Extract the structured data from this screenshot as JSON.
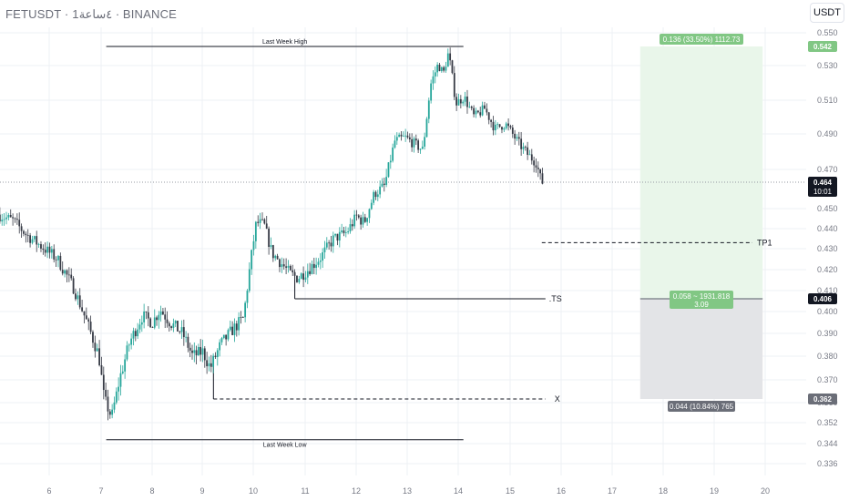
{
  "header": {
    "title": "FETUSDT · 1٤ساعة · BINANCE",
    "unit_button": "USDT"
  },
  "chart_data": {
    "type": "candlestick",
    "symbol": "FETUSDT",
    "exchange": "BINANCE",
    "ylim": [
      0.336,
      0.556
    ],
    "y_ticks": [
      "0.550",
      "0.530",
      "0.510",
      "0.490",
      "0.470",
      "0.450",
      "0.440",
      "0.430",
      "0.420",
      "0.410",
      "0.400",
      "0.390",
      "0.380",
      "0.370",
      "0.360",
      "0.352",
      "0.344",
      "0.336"
    ],
    "x_ticks": [
      {
        "label": "6",
        "x": 6
      },
      {
        "label": "7",
        "x": 7
      },
      {
        "label": "8",
        "x": 8
      },
      {
        "label": "9",
        "x": 9
      },
      {
        "label": "10",
        "x": 10
      },
      {
        "label": "11",
        "x": 11
      },
      {
        "label": "12",
        "x": 12
      },
      {
        "label": "13",
        "x": 13
      },
      {
        "label": "14",
        "x": 14
      },
      {
        "label": "15",
        "x": 15
      },
      {
        "label": "16",
        "x": 16
      },
      {
        "label": "17",
        "x": 17
      },
      {
        "label": "18",
        "x": 18
      },
      {
        "label": "19",
        "x": 19
      },
      {
        "label": "20",
        "x": 20
      }
    ],
    "xlim": [
      5.05,
      20.75
    ],
    "colors": {
      "up": "#26a69a",
      "down": "#363a45",
      "grid": "#eef0f4",
      "green_zone": "#e9f6ea",
      "gray_zone": "#e3e4e7",
      "green_badge": "#81c784",
      "dark_badge": "#131722",
      "gray_badge": "#6b6e78"
    },
    "price_points": [
      [
        5.05,
        0.447
      ],
      [
        5.35,
        0.444
      ],
      [
        5.6,
        0.437
      ],
      [
        5.9,
        0.431
      ],
      [
        6.2,
        0.425
      ],
      [
        6.5,
        0.412
      ],
      [
        6.8,
        0.393
      ],
      [
        7.0,
        0.38
      ],
      [
        7.1,
        0.362
      ],
      [
        7.25,
        0.354
      ],
      [
        7.4,
        0.37
      ],
      [
        7.6,
        0.386
      ],
      [
        7.85,
        0.398
      ],
      [
        8.05,
        0.395
      ],
      [
        8.2,
        0.401
      ],
      [
        8.4,
        0.395
      ],
      [
        8.65,
        0.39
      ],
      [
        8.85,
        0.38
      ],
      [
        9.05,
        0.382
      ],
      [
        9.2,
        0.375
      ],
      [
        9.4,
        0.385
      ],
      [
        9.65,
        0.392
      ],
      [
        9.85,
        0.397
      ],
      [
        9.98,
        0.422
      ],
      [
        10.1,
        0.443
      ],
      [
        10.25,
        0.442
      ],
      [
        10.4,
        0.428
      ],
      [
        10.55,
        0.424
      ],
      [
        10.75,
        0.418
      ],
      [
        10.9,
        0.416
      ],
      [
        11.1,
        0.42
      ],
      [
        11.35,
        0.426
      ],
      [
        11.6,
        0.435
      ],
      [
        11.85,
        0.438
      ],
      [
        12.05,
        0.446
      ],
      [
        12.2,
        0.443
      ],
      [
        12.4,
        0.458
      ],
      [
        12.6,
        0.462
      ],
      [
        12.8,
        0.486
      ],
      [
        13.0,
        0.488
      ],
      [
        13.2,
        0.484
      ],
      [
        13.35,
        0.481
      ],
      [
        13.5,
        0.519
      ],
      [
        13.65,
        0.531
      ],
      [
        13.75,
        0.525
      ],
      [
        13.85,
        0.538
      ],
      [
        14.0,
        0.508
      ],
      [
        14.15,
        0.512
      ],
      [
        14.35,
        0.5
      ],
      [
        14.55,
        0.505
      ],
      [
        14.75,
        0.493
      ],
      [
        14.95,
        0.496
      ],
      [
        15.2,
        0.485
      ],
      [
        15.4,
        0.478
      ],
      [
        15.55,
        0.474
      ],
      [
        15.65,
        0.464
      ]
    ],
    "annotations": {
      "last_week_high": {
        "label": "Last Week High",
        "price": 0.542,
        "x0": 7.1,
        "x1": 14.1
      },
      "last_week_low": {
        "label": "Last Week Low",
        "price": 0.3455,
        "x0": 7.1,
        "x1": 14.1
      },
      "ts_line": {
        "label": ".TS",
        "price": 0.406,
        "x0": 10.8,
        "x1": 15.3
      },
      "x_line": {
        "label": "X",
        "price": 0.362,
        "x0": 9.22,
        "x1": 15.3
      },
      "tp1_line": {
        "label": "TP1",
        "price": 0.433,
        "x0": 15.3,
        "x1": 19.5
      },
      "current_price_line": {
        "price": 0.464
      }
    },
    "position": {
      "x0": 17.55,
      "x1": 19.95,
      "entry": 0.406,
      "target": 0.542,
      "stop": 0.362,
      "target_label": "0.136 (33.50%) 1112.73",
      "entry_label_1": "0.058 ~ 1931.818",
      "entry_label_2": "3.09",
      "stop_label": "0.044 (10.84%) 765"
    },
    "axis_badges": [
      {
        "text": "0.542",
        "price": 0.542,
        "style": "green"
      },
      {
        "text": "0.464",
        "text2": "10:01",
        "price": 0.464,
        "style": "dark"
      },
      {
        "text": "0.406",
        "price": 0.406,
        "style": "dark"
      },
      {
        "text": "0.362",
        "price": 0.362,
        "style": "gray"
      }
    ]
  }
}
